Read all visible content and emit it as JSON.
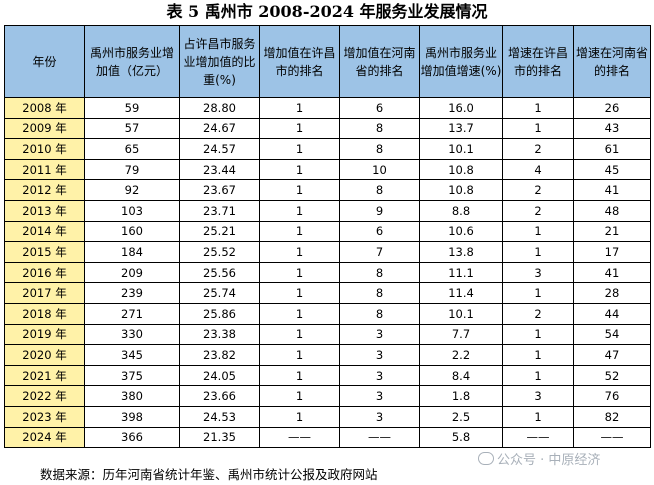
{
  "title": "表 5  禹州市 2008-2024 年服务业发展情况",
  "headers": [
    "年份",
    "禹州市服务业增加值（亿元）",
    "占许昌市服务业增加值的比重(%)",
    "增加值在许昌市的排名",
    "增加值在河南省的排名",
    "禹州市服务业增加值增速(%)",
    "增速在许昌市的排名",
    "增速在河南省的排名"
  ],
  "rows": [
    [
      "2008 年",
      "59",
      "28.80",
      "1",
      "6",
      "16.0",
      "1",
      "26"
    ],
    [
      "2009 年",
      "57",
      "24.67",
      "1",
      "8",
      "13.7",
      "1",
      "43"
    ],
    [
      "2010 年",
      "65",
      "24.57",
      "1",
      "8",
      "10.1",
      "2",
      "61"
    ],
    [
      "2011 年",
      "79",
      "23.44",
      "1",
      "10",
      "10.8",
      "4",
      "45"
    ],
    [
      "2012 年",
      "92",
      "23.67",
      "1",
      "8",
      "10.8",
      "2",
      "41"
    ],
    [
      "2013 年",
      "103",
      "23.71",
      "1",
      "9",
      "8.8",
      "2",
      "48"
    ],
    [
      "2014 年",
      "160",
      "25.21",
      "1",
      "6",
      "10.6",
      "1",
      "21"
    ],
    [
      "2015 年",
      "184",
      "25.52",
      "1",
      "7",
      "13.8",
      "1",
      "17"
    ],
    [
      "2016 年",
      "209",
      "25.56",
      "1",
      "8",
      "11.1",
      "3",
      "41"
    ],
    [
      "2017 年",
      "239",
      "25.74",
      "1",
      "8",
      "11.4",
      "1",
      "28"
    ],
    [
      "2018 年",
      "271",
      "25.86",
      "1",
      "8",
      "10.1",
      "2",
      "44"
    ],
    [
      "2019 年",
      "330",
      "23.38",
      "1",
      "3",
      "7.7",
      "1",
      "54"
    ],
    [
      "2020 年",
      "345",
      "23.82",
      "1",
      "3",
      "2.2",
      "1",
      "47"
    ],
    [
      "2021 年",
      "375",
      "24.05",
      "1",
      "3",
      "8.4",
      "1",
      "52"
    ],
    [
      "2022 年",
      "380",
      "23.66",
      "1",
      "3",
      "1.8",
      "3",
      "76"
    ],
    [
      "2023 年",
      "398",
      "24.53",
      "1",
      "3",
      "2.5",
      "1",
      "82"
    ],
    [
      "2024 年",
      "366",
      "21.35",
      "——",
      "——",
      "5.8",
      "——",
      "——"
    ]
  ],
  "source": "数据来源：历年河南省统计年鉴、禹州市统计公报及政府网站",
  "watermark": "公众号 · 中原经济",
  "colors": {
    "header_bg": "#9dc3e6",
    "year_bg": "#fff2a8"
  }
}
